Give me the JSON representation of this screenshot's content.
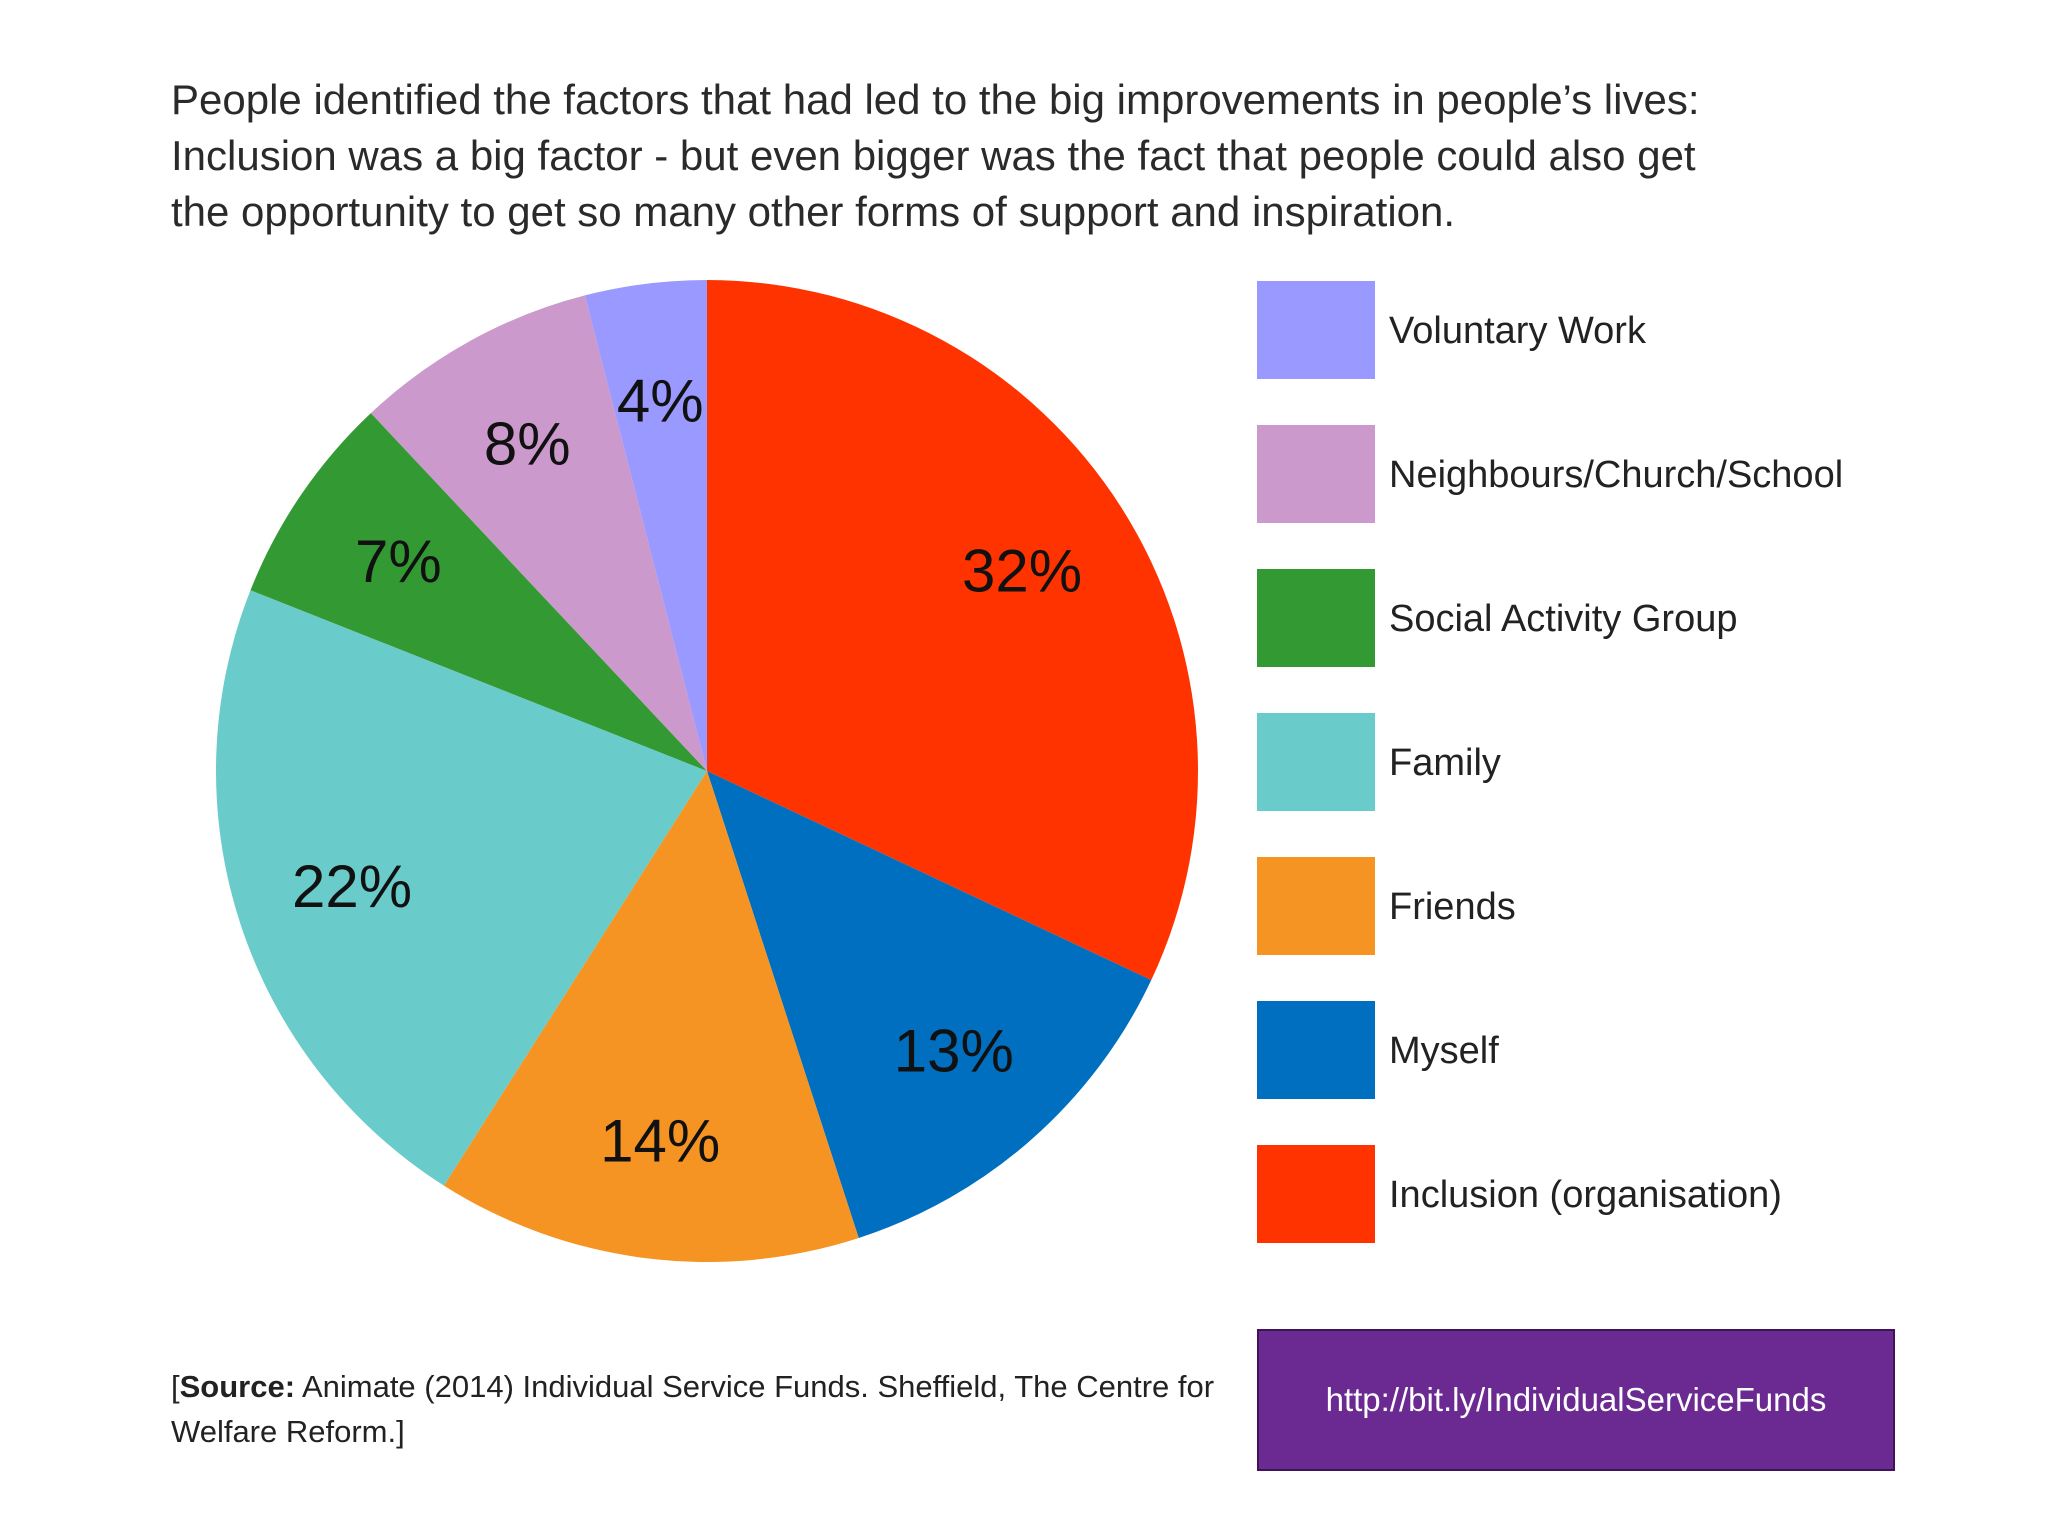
{
  "headline": {
    "line1": "People identified the factors that had led to the big improvements in people’s lives:",
    "line2": "Inclusion was a big factor - but even bigger was the fact that people could also get",
    "line3": "the opportunity to get so many other forms of support and inspiration."
  },
  "chart_data": {
    "type": "pie",
    "start": "12 o'clock, clockwise",
    "slices": [
      {
        "label": "Inclusion (organisation)",
        "value": 32,
        "display": "32%",
        "color": "#ff3300"
      },
      {
        "label": "Myself",
        "value": 13,
        "display": "13%",
        "color": "#006fc0"
      },
      {
        "label": "Friends",
        "value": 14,
        "display": "14%",
        "color": "#f59423"
      },
      {
        "label": "Family",
        "value": 22,
        "display": "22%",
        "color": "#6acbcb"
      },
      {
        "label": "Social Activity Group",
        "value": 7,
        "display": "7%",
        "color": "#339933"
      },
      {
        "label": "Neighbours/Church/School",
        "value": 8,
        "display": "8%",
        "color": "#cc99cc"
      },
      {
        "label": "Voluntary Work",
        "value": 4,
        "display": "4%",
        "color": "#9999ff"
      }
    ],
    "legend": {
      "placement": "right",
      "order": [
        "Voluntary Work",
        "Neighbours/Church/School",
        "Social Activity Group",
        "Family",
        "Friends",
        "Myself",
        "Inclusion (organisation)"
      ]
    }
  },
  "source": {
    "open": "[",
    "label": "Source:",
    "text": " Animate (2014) Individual Service Funds. Sheffield, The Centre for Welfare Reform.]"
  },
  "link": {
    "text": "http://bit.ly/IndividualServiceFunds"
  }
}
